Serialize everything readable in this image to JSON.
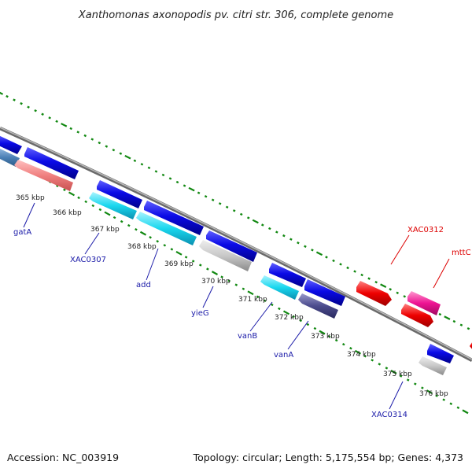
{
  "title": "Xanthomonas axonopodis pv. citri str. 306, complete genome",
  "footer": {
    "accession": "Accession: NC_003919",
    "summary": "Topology: circular; Length: 5,175,554 bp; Genes: 4,373"
  },
  "colors": {
    "forward": "#0a0ae6",
    "reverse_hypothetical": "#c8c8c8",
    "reverse_cyan": "#19d7ee",
    "reverse_salmon": "#f08080",
    "reverse_steel": "#4a7fb5",
    "reverse_navy": "#4b4b8c",
    "red": "#ee0000",
    "magenta": "#ee1493",
    "label_blue": "#1a1aa8",
    "label_red": "#dd0000",
    "tick_green": "#118811",
    "backbone": "#8c8c8c"
  },
  "scale_labels": [
    "365 kbp",
    "366 kbp",
    "367 kbp",
    "368 kbp",
    "369 kbp",
    "370 kbp",
    "371 kbp",
    "372 kbp",
    "373 kbp",
    "374 kbp",
    "375 kbp",
    "376 kbp"
  ],
  "gene_labels": [
    {
      "text": "gatA",
      "color": "blue"
    },
    {
      "text": "XAC0307",
      "color": "blue"
    },
    {
      "text": "add",
      "color": "blue"
    },
    {
      "text": "yieG",
      "color": "blue"
    },
    {
      "text": "vanB",
      "color": "blue"
    },
    {
      "text": "vanA",
      "color": "blue"
    },
    {
      "text": "XAC0314",
      "color": "blue"
    },
    {
      "text": "XAC0312",
      "color": "red"
    },
    {
      "text": "mttC",
      "color": "red"
    }
  ]
}
